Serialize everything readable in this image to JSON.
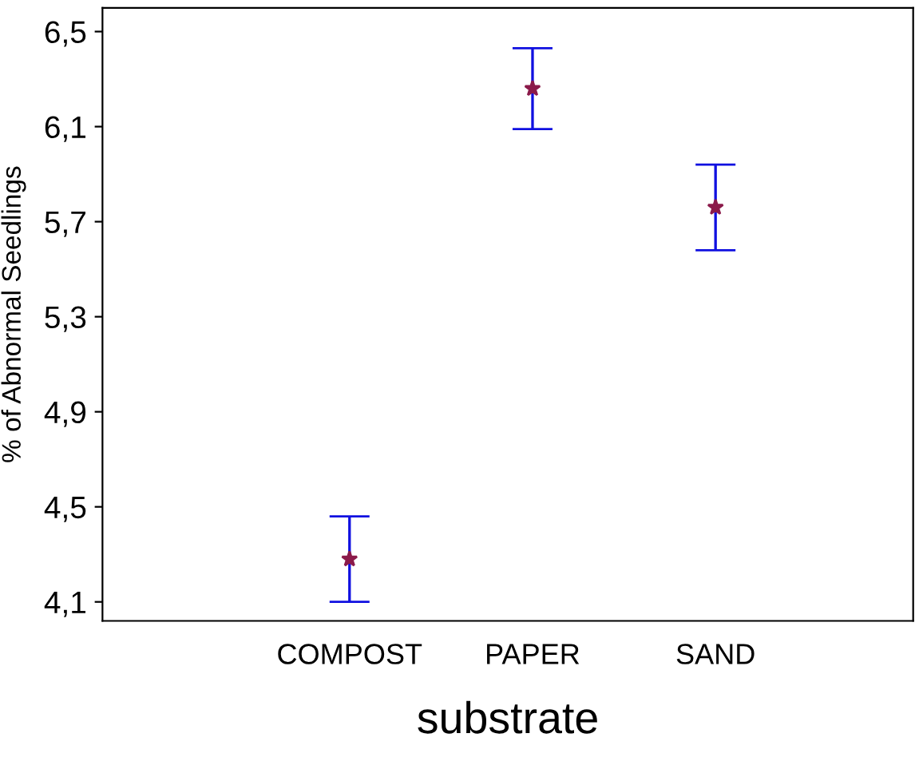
{
  "chart_data": {
    "type": "scatter",
    "xlabel": "substrate",
    "ylabel": "% of Abnormal Seedlings",
    "categories": [
      "COMPOST",
      "PAPER",
      "SAND"
    ],
    "series": [
      {
        "color": "#8b1a4a",
        "values": [
          4.28,
          6.26,
          5.76
        ],
        "errors": [
          0.18,
          0.17,
          0.18
        ]
      }
    ],
    "ylim": [
      4.02,
      6.6
    ],
    "yticks": [
      {
        "value": 4.1,
        "label": "4,1"
      },
      {
        "value": 4.5,
        "label": "4,5"
      },
      {
        "value": 4.9,
        "label": "4,9"
      },
      {
        "value": 5.3,
        "label": "5,3"
      },
      {
        "value": 5.7,
        "label": "5,7"
      },
      {
        "value": 6.1,
        "label": "6,1"
      },
      {
        "value": 6.5,
        "label": "6,5"
      }
    ],
    "marker": "star",
    "grid": false,
    "legend": false
  }
}
